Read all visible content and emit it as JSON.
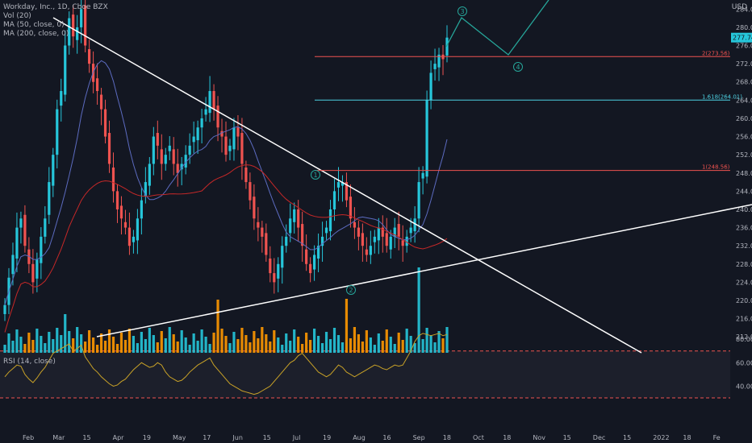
{
  "header": {
    "symbol": "Workday, Inc., 1D, Cboe BZX",
    "indicators": [
      "Vol (20)",
      "MA (50, close, 0)",
      "MA (200, close, 0)"
    ],
    "currency": "USD",
    "rsi_label": "RSI (14, close)"
  },
  "colors": {
    "background": "#131722",
    "up": "#26c6da",
    "down": "#ef5350",
    "vol_up": "#26c6da",
    "vol_down": "#ff9800",
    "ma50": "#5c6bc0",
    "ma200": "#c62828",
    "rsi": "#c9a227",
    "wave": "#26a69a",
    "trendline": "#ffffff",
    "level_red": "#ef5350",
    "level_cyan": "#4dd0e1"
  },
  "price_label": "277.74",
  "levels": [
    {
      "label": "2(273.56)",
      "price": 273.56,
      "color": "#ef5350"
    },
    {
      "label": "1.618(264.01)",
      "price": 264.01,
      "color": "#4dd0e1"
    },
    {
      "label": "1(248.56)",
      "price": 248.56,
      "color": "#ef5350"
    }
  ],
  "wave_labels": [
    "1",
    "2",
    "3",
    "4"
  ],
  "chart_data": {
    "type": "candlestick",
    "x_ticks": [
      "Feb",
      "Mar",
      "15",
      "Apr",
      "19",
      "May",
      "17",
      "Jun",
      "15",
      "Jul",
      "19",
      "Aug",
      "16",
      "Sep",
      "18",
      "Oct",
      "18",
      "Nov",
      "15",
      "Dec",
      "15",
      "2022",
      "18",
      "Fe"
    ],
    "y_ticks": [
      284.0,
      280.0,
      276.0,
      272.0,
      268.0,
      264.0,
      260.0,
      256.0,
      252.0,
      248.0,
      244.0,
      240.0,
      236.0,
      232.0,
      228.0,
      224.0,
      220.0,
      216.0,
      212.0
    ],
    "ylim": [
      208.5,
      286
    ],
    "rsi_ticks": [
      80.0,
      60.0,
      40.0
    ],
    "rsi_levels": [
      70,
      30
    ],
    "closes": [
      219,
      225,
      230,
      236,
      238,
      232,
      228,
      224,
      229,
      234,
      238,
      246,
      252,
      262,
      266,
      276,
      282,
      278,
      280,
      284,
      276,
      272,
      268,
      266,
      262,
      256,
      250,
      244,
      240,
      238,
      236,
      232,
      234,
      238,
      242,
      246,
      250,
      256,
      254,
      250,
      252,
      254,
      250,
      248,
      250,
      252,
      254,
      256,
      258,
      260,
      262,
      266,
      262,
      258,
      256,
      252,
      254,
      258,
      256,
      250,
      246,
      242,
      238,
      236,
      234,
      230,
      226,
      224,
      228,
      232,
      234,
      238,
      240,
      236,
      232,
      228,
      226,
      230,
      232,
      234,
      236,
      240,
      244,
      246,
      246,
      242,
      238,
      236,
      234,
      232,
      230,
      232,
      234,
      236,
      234,
      232,
      234,
      236,
      234,
      232,
      234,
      236,
      238,
      246,
      248,
      264,
      270,
      272,
      274,
      273,
      277.74
    ],
    "rsi_values": [
      48,
      52,
      55,
      58,
      57,
      50,
      46,
      43,
      47,
      52,
      56,
      62,
      68,
      70,
      72,
      74,
      76,
      70,
      72,
      75,
      65,
      60,
      55,
      52,
      48,
      45,
      42,
      40,
      41,
      44,
      46,
      50,
      54,
      57,
      60,
      58,
      56,
      57,
      60,
      58,
      52,
      48,
      46,
      44,
      45,
      48,
      52,
      55,
      58,
      60,
      62,
      64,
      58,
      54,
      50,
      46,
      42,
      40,
      38,
      36,
      35,
      34,
      33,
      34,
      36,
      38,
      40,
      44,
      48,
      52,
      56,
      60,
      62,
      66,
      68,
      64,
      60,
      56,
      52,
      50,
      48,
      50,
      54,
      58,
      56,
      52,
      50,
      48,
      50,
      52,
      54,
      56,
      58,
      57,
      55,
      54,
      56,
      58,
      57,
      58,
      64,
      70,
      78,
      83,
      85,
      84,
      83,
      84,
      85,
      83,
      84
    ]
  }
}
